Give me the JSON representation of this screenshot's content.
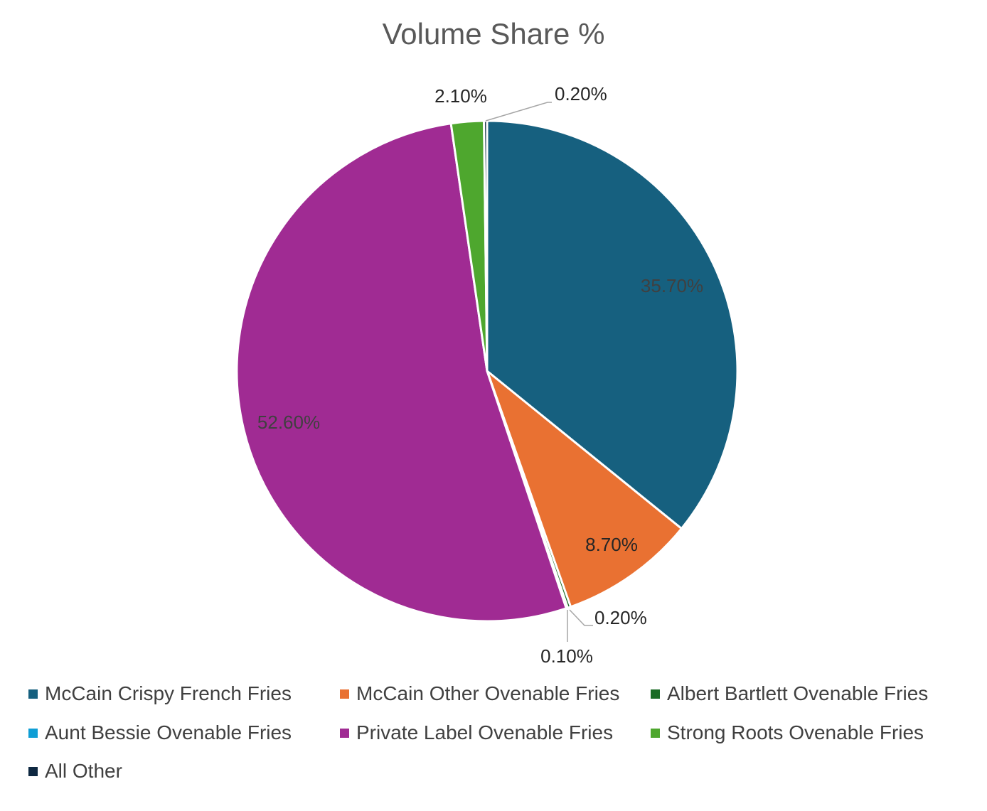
{
  "chart_data": {
    "type": "pie",
    "title": "Volume Share %",
    "legend_position": "bottom",
    "slices": [
      {
        "name": "McCain Crispy French Fries",
        "value": 35.7,
        "label": "35.70%",
        "color": "#16607f",
        "label_color": "#404040"
      },
      {
        "name": "McCain Other Ovenable Fries",
        "value": 8.7,
        "label": "8.70%",
        "color": "#e97132",
        "label_color": "#262626"
      },
      {
        "name": "Albert Bartlett Ovenable Fries",
        "value": 0.2,
        "label": "0.20%",
        "color": "#196b24",
        "label_color": "#262626"
      },
      {
        "name": "Aunt Bessie Ovenable Fries",
        "value": 0.1,
        "label": "0.10%",
        "color": "#0f9ed5",
        "label_color": "#262626"
      },
      {
        "name": "Private Label Ovenable Fries",
        "value": 52.6,
        "label": "52.60%",
        "color": "#a02b93",
        "label_color": "#404040"
      },
      {
        "name": "Strong Roots Ovenable Fries",
        "value": 2.1,
        "label": "2.10%",
        "color": "#4ea72e",
        "label_color": "#262626"
      },
      {
        "name": "All Other",
        "value": 0.2,
        "label": "0.20%",
        "color": "#0e2841",
        "label_color": "#262626"
      }
    ]
  }
}
